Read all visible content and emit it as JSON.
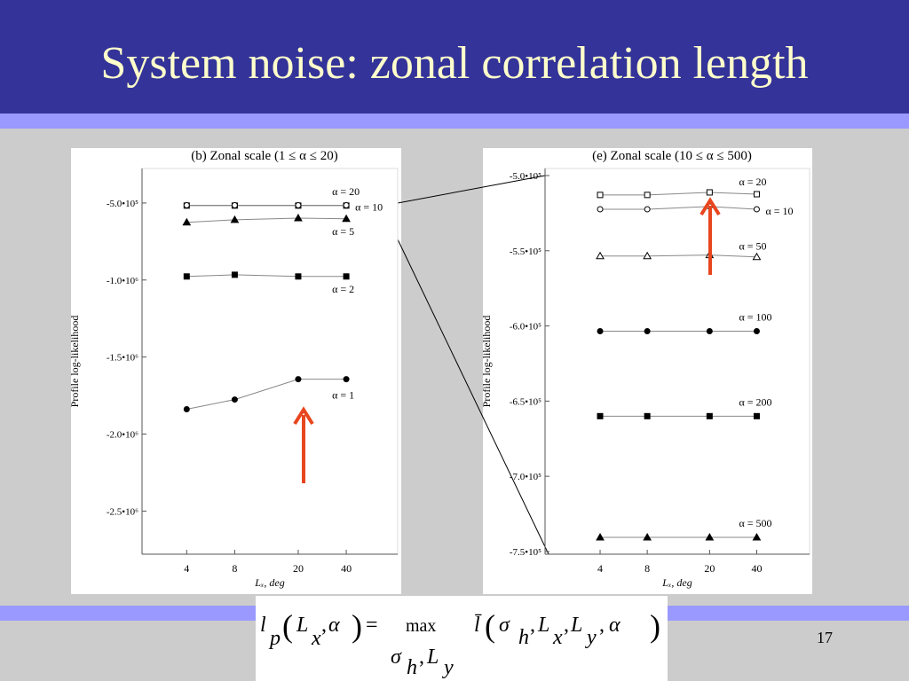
{
  "slide_title": "System noise: zonal correlation length",
  "page_number": "17",
  "equation": [
    "l",
    "p",
    "(",
    "L",
    "x",
    ",",
    "α",
    ")",
    "=",
    "max",
    "σ",
    "h",
    ",",
    "L",
    "y",
    "l̄",
    "(",
    "σ",
    "h",
    ",",
    "L",
    "x",
    ",",
    "L",
    "y",
    ",",
    "α",
    ")"
  ],
  "chart_data": [
    {
      "type": "line",
      "title": "(b) Zonal scale (1 ≤ α ≤ 20)",
      "x_label": "Lₓ, deg",
      "y_label": "Profile log-likelihood",
      "x_scale": "log",
      "x": [
        4,
        8,
        20,
        40
      ],
      "xlim": [
        2.1,
        84
      ],
      "xticks": [
        4,
        8,
        20,
        40
      ],
      "ylim": [
        -2780000,
        -276000
      ],
      "yticks": [
        {
          "value": -500000,
          "label": "-5.0•10⁵"
        },
        {
          "value": -1000000,
          "label": "-1.0•10⁶"
        },
        {
          "value": -1500000,
          "label": "-1.5•10⁶"
        },
        {
          "value": -2000000,
          "label": "-2.0•10⁶"
        },
        {
          "value": -2500000,
          "label": "-2.5•10⁶"
        }
      ],
      "series": [
        {
          "name": "α = 20",
          "color": "#000000",
          "marker": "square",
          "filled": false,
          "values": [
            -517000,
            -517000,
            -517000,
            -517000
          ]
        },
        {
          "name": "α = 10",
          "color": "#000000",
          "marker": "circle",
          "filled": false,
          "values": [
            -515000,
            -515000,
            -515000,
            -515000
          ]
        },
        {
          "name": "α = 5",
          "color": "#000000",
          "marker": "triangle",
          "filled": true,
          "values": [
            -626000,
            -609000,
            -598000,
            -603000
          ]
        },
        {
          "name": "α = 2",
          "color": "#000000",
          "marker": "square",
          "filled": true,
          "values": [
            -977000,
            -966000,
            -977000,
            -977000
          ]
        },
        {
          "name": "α = 1",
          "color": "#000000",
          "marker": "circle",
          "filled": true,
          "values": [
            -1839000,
            -1776000,
            -1644000,
            -1644000
          ]
        }
      ]
    },
    {
      "type": "line",
      "title": "(e) Zonal scale (10 ≤ α ≤ 500)",
      "x_label": "Lₓ, deg",
      "y_label": "Profile log-likelihood",
      "x_scale": "log",
      "x": [
        4,
        8,
        20,
        40
      ],
      "xlim": [
        1.78,
        87
      ],
      "xticks": [
        4,
        8,
        20,
        40
      ],
      "ylim": [
        -751800,
        -495300
      ],
      "yticks": [
        {
          "value": -500000,
          "label": "-5.0•10⁵"
        },
        {
          "value": -550000,
          "label": "-5.5•10⁵"
        },
        {
          "value": -600000,
          "label": "-6.0•10⁵"
        },
        {
          "value": -650000,
          "label": "-6.5•10⁵"
        },
        {
          "value": -700000,
          "label": "-7.0•10⁵"
        },
        {
          "value": -750000,
          "label": "-7.5•10⁵"
        }
      ],
      "series": [
        {
          "name": "α = 20",
          "color": "#000000",
          "marker": "square",
          "filled": false,
          "values": [
            -512900,
            -512900,
            -511200,
            -512400
          ]
        },
        {
          "name": "α = 10",
          "color": "#000000",
          "marker": "circle",
          "filled": false,
          "values": [
            -522400,
            -522400,
            -520600,
            -522400
          ]
        },
        {
          "name": "α = 50",
          "color": "#000000",
          "marker": "triangle",
          "filled": false,
          "values": [
            -553500,
            -553500,
            -552900,
            -554100
          ]
        },
        {
          "name": "α = 100",
          "color": "#000000",
          "marker": "circle",
          "filled": true,
          "values": [
            -603500,
            -603500,
            -603500,
            -603500
          ]
        },
        {
          "name": "α = 200",
          "color": "#000000",
          "marker": "square",
          "filled": true,
          "values": [
            -660000,
            -660000,
            -660000,
            -660000
          ]
        },
        {
          "name": "α = 500",
          "color": "#000000",
          "marker": "triangle",
          "filled": true,
          "values": [
            -740600,
            -740600,
            -740600,
            -740600
          ]
        }
      ]
    }
  ]
}
